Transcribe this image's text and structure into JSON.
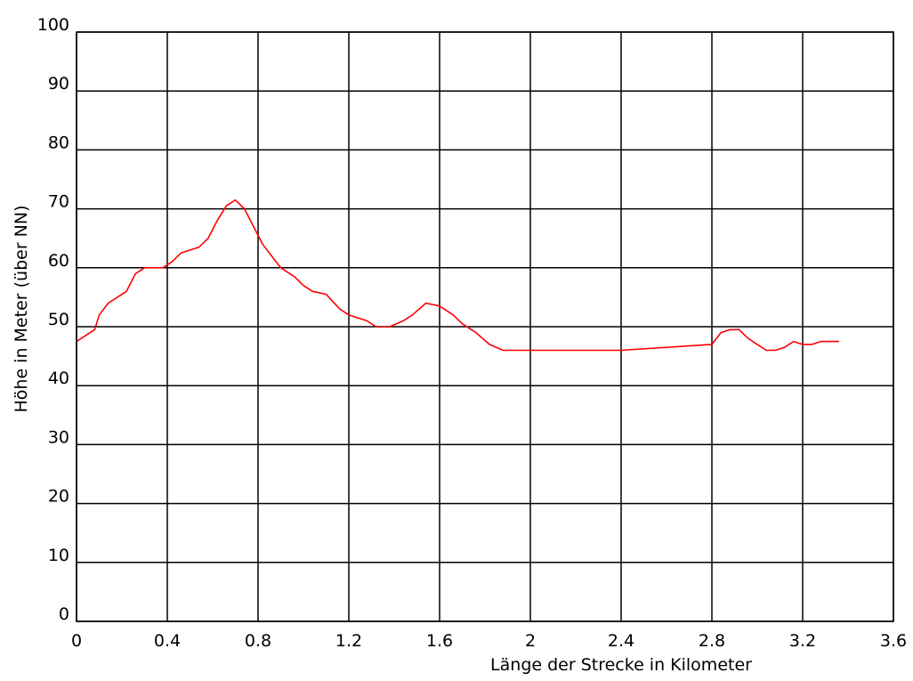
{
  "colors": {
    "background": "#ffffff",
    "grid": "#000000",
    "series": "#ff0000"
  },
  "chart_data": {
    "type": "line",
    "title": "",
    "xlabel": "Länge der Strecke in Kilometer",
    "ylabel": "Höhe in Meter (über NN)",
    "xlim": [
      0,
      3.6
    ],
    "ylim": [
      0,
      100
    ],
    "grid": true,
    "x_ticks": [
      "0",
      "0.4",
      "0.8",
      "1.2",
      "1.6",
      "2",
      "2.4",
      "2.8",
      "3.2",
      "3.6"
    ],
    "y_ticks": [
      "0",
      "10",
      "20",
      "30",
      "40",
      "50",
      "60",
      "70",
      "80",
      "90",
      "100"
    ],
    "series": [
      {
        "color": "#ff0000",
        "x": [
          0,
          0.04,
          0.08,
          0.1,
          0.14,
          0.18,
          0.22,
          0.26,
          0.3,
          0.34,
          0.38,
          0.42,
          0.46,
          0.5,
          0.54,
          0.58,
          0.62,
          0.66,
          0.7,
          0.74,
          0.78,
          0.82,
          0.86,
          0.9,
          0.96,
          1.0,
          1.04,
          1.1,
          1.16,
          1.2,
          1.24,
          1.28,
          1.32,
          1.38,
          1.44,
          1.48,
          1.54,
          1.6,
          1.66,
          1.7,
          1.76,
          1.82,
          1.88,
          1.94,
          2.0,
          2.4,
          2.8,
          2.84,
          2.88,
          2.92,
          2.96,
          3.0,
          3.04,
          3.08,
          3.12,
          3.16,
          3.2,
          3.24,
          3.28,
          3.32,
          3.36
        ],
        "y": [
          47.5,
          48.5,
          49.5,
          52,
          54,
          55,
          56,
          59,
          60,
          60,
          60,
          61,
          62.5,
          63,
          63.5,
          65,
          68,
          70.5,
          71.5,
          70,
          67,
          64,
          62,
          60,
          58.5,
          57,
          56,
          55.5,
          53,
          52,
          51.5,
          51,
          50,
          50,
          51,
          52,
          54,
          53.5,
          52,
          50.5,
          49,
          47,
          46,
          46,
          46,
          46,
          47,
          49,
          49.5,
          49.5,
          48,
          47,
          46,
          46,
          46.5,
          47.5,
          47,
          47,
          47.5,
          47.5,
          47.5
        ]
      }
    ]
  }
}
